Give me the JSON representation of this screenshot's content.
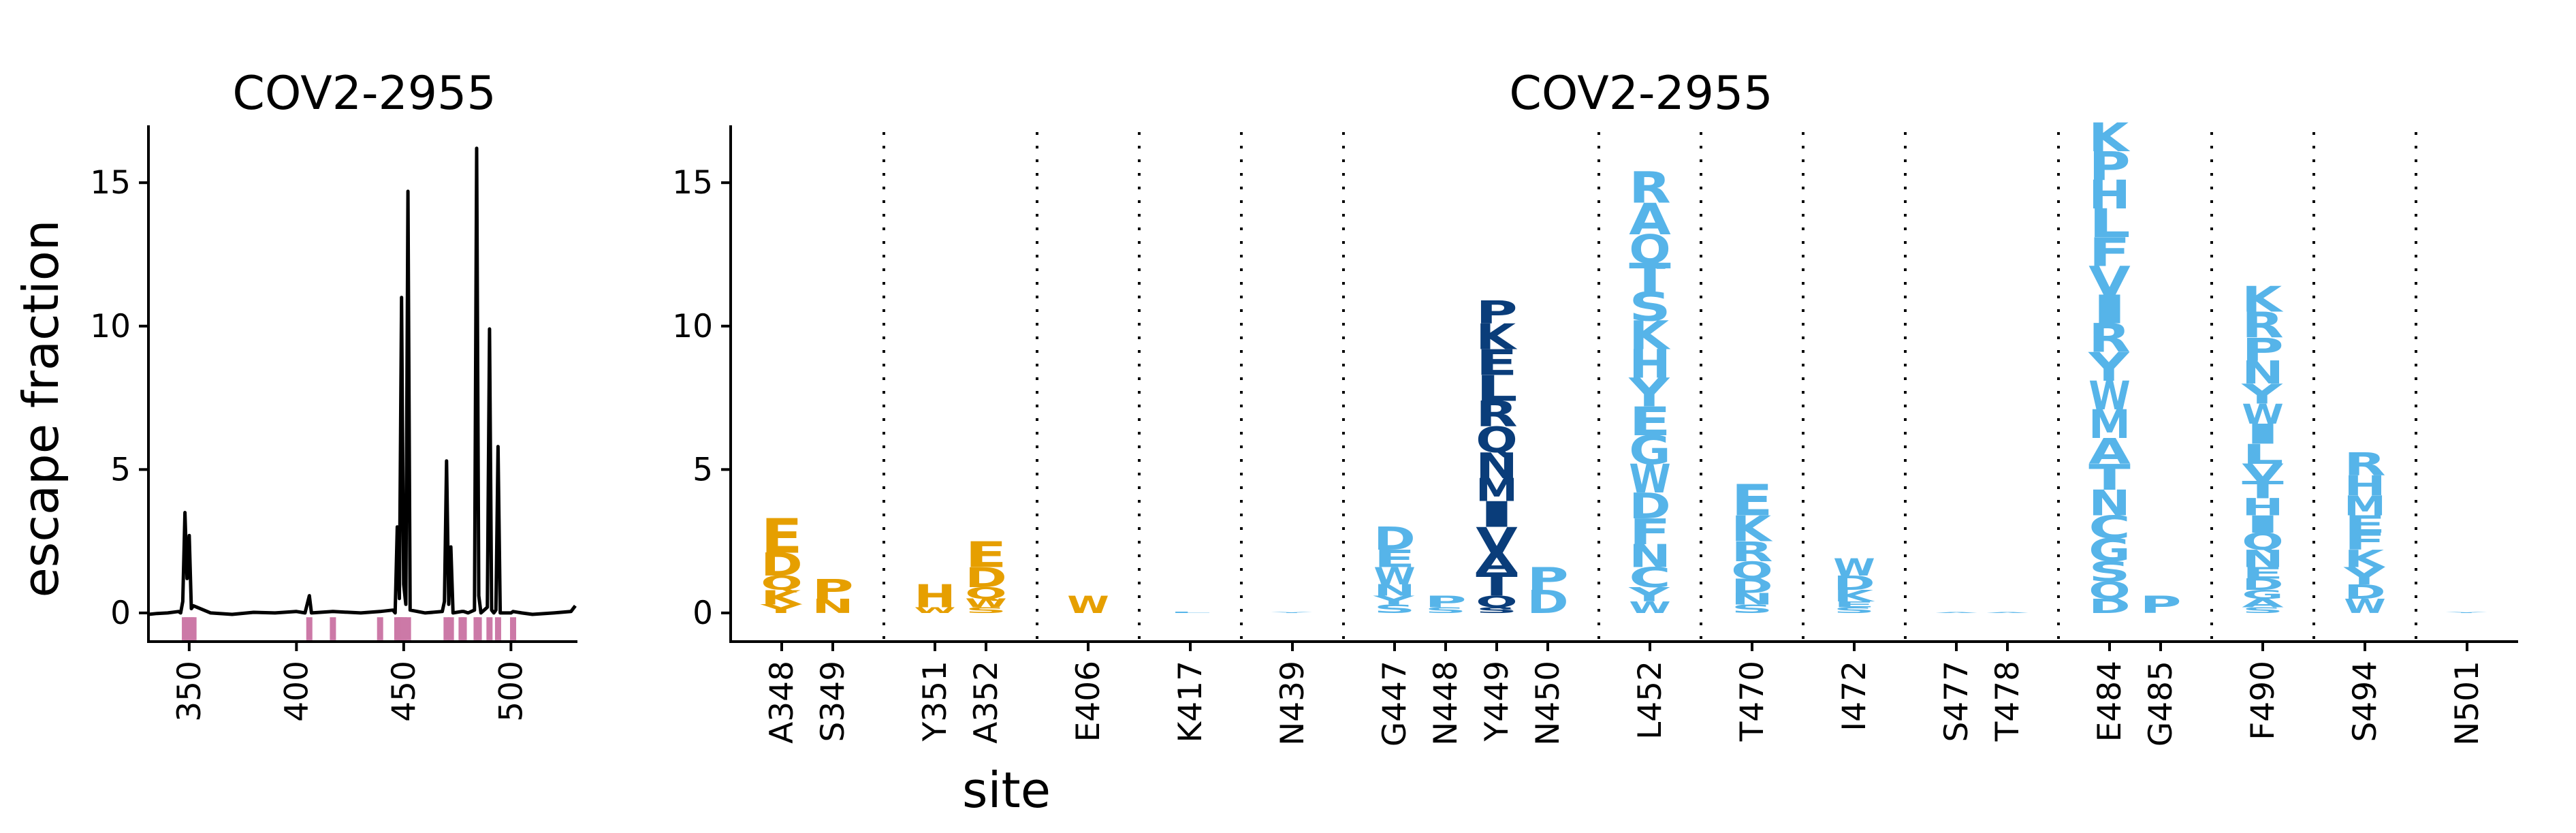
{
  "colors": {
    "orange": "#e69f00",
    "light_blue": "#56b4e9",
    "dark_blue": "#0a3d7a",
    "pink": "#cc79a7",
    "line": "#000000"
  },
  "chart_data": [
    {
      "type": "line",
      "title": "COV2-2955",
      "ylabel": "escape fraction",
      "xlabel": "",
      "xlim": [
        331,
        531
      ],
      "ylim": [
        -1,
        17
      ],
      "xticks": [
        350,
        400,
        450,
        500
      ],
      "yticks": [
        0,
        5,
        10,
        15
      ],
      "grid": false,
      "series": [
        {
          "type": "line",
          "points": [
            [
              331,
              -0.05
            ],
            [
              335,
              -0.02
            ],
            [
              340,
              0.0
            ],
            [
              345,
              0.05
            ],
            [
              346,
              0.0
            ],
            [
              347,
              0.4
            ],
            [
              348,
              3.5
            ],
            [
              349,
              1.2
            ],
            [
              350,
              2.7
            ],
            [
              351,
              0.15
            ],
            [
              352,
              0.25
            ],
            [
              360,
              0.0
            ],
            [
              370,
              -0.05
            ],
            [
              380,
              0.02
            ],
            [
              390,
              0.0
            ],
            [
              400,
              0.05
            ],
            [
              404,
              0.0
            ],
            [
              406,
              0.6
            ],
            [
              407,
              0.0
            ],
            [
              417,
              0.05
            ],
            [
              430,
              0.0
            ],
            [
              439,
              0.05
            ],
            [
              445,
              0.1
            ],
            [
              446,
              0.0
            ],
            [
              447,
              3.0
            ],
            [
              448,
              0.5
            ],
            [
              449,
              11.0
            ],
            [
              450,
              1.0
            ],
            [
              451,
              0.3
            ],
            [
              452,
              14.7
            ],
            [
              453,
              0.1
            ],
            [
              460,
              0.0
            ],
            [
              468,
              0.05
            ],
            [
              469,
              0.4
            ],
            [
              470,
              5.3
            ],
            [
              471,
              0.3
            ],
            [
              472,
              2.3
            ],
            [
              473,
              0.0
            ],
            [
              477,
              0.05
            ],
            [
              478,
              0.05
            ],
            [
              480,
              0.0
            ],
            [
              483,
              0.1
            ],
            [
              484,
              16.2
            ],
            [
              485,
              0.6
            ],
            [
              486,
              0.0
            ],
            [
              489,
              0.2
            ],
            [
              490,
              9.9
            ],
            [
              491,
              0.1
            ],
            [
              492,
              0.0
            ],
            [
              493,
              0.1
            ],
            [
              494,
              5.8
            ],
            [
              495,
              0.0
            ],
            [
              500,
              0.0
            ],
            [
              501,
              0.05
            ],
            [
              505,
              0.0
            ],
            [
              510,
              -0.05
            ],
            [
              520,
              0.0
            ],
            [
              528,
              0.05
            ],
            [
              530,
              0.25
            ]
          ]
        }
      ],
      "highlighted_sites": [
        348,
        349,
        351,
        352,
        406,
        417,
        439,
        447,
        448,
        449,
        450,
        452,
        470,
        472,
        477,
        478,
        484,
        485,
        490,
        494,
        501
      ]
    },
    {
      "type": "logo",
      "title": "COV2-2955",
      "xlabel": "site",
      "ylabel": "",
      "ylim": [
        -1,
        17
      ],
      "yticks": [
        0,
        5,
        10,
        15
      ],
      "grid": false,
      "groups": [
        {
          "sites": [
            {
              "label": "A348",
              "color_key": "orange",
              "letters": [
                [
                  "Y",
                  0.3
                ],
                [
                  "K",
                  0.5
                ],
                [
                  "Q",
                  0.5
                ],
                [
                  "D",
                  0.8
                ],
                [
                  "E",
                  1.2
                ]
              ]
            },
            {
              "label": "S349",
              "color_key": "orange",
              "letters": [
                [
                  "N",
                  0.5
                ],
                [
                  "P",
                  0.7
                ]
              ]
            }
          ]
        },
        {
          "sites": [
            {
              "label": "Y351",
              "color_key": "orange",
              "letters": [
                [
                  "W",
                  0.2
                ],
                [
                  "H",
                  0.8
                ]
              ]
            },
            {
              "label": "A352",
              "color_key": "orange",
              "letters": [
                [
                  "S",
                  0.2
                ],
                [
                  "W",
                  0.3
                ],
                [
                  "Q",
                  0.4
                ],
                [
                  "D",
                  0.7
                ],
                [
                  "E",
                  0.9
                ]
              ]
            }
          ]
        },
        {
          "sites": [
            {
              "label": "E406",
              "color_key": "orange",
              "letters": [
                [
                  "W",
                  0.6
                ]
              ]
            }
          ]
        },
        {
          "sites": [
            {
              "label": "K417",
              "color_key": "light_blue",
              "letters": [
                [
                  "L",
                  0.05
                ]
              ]
            }
          ]
        },
        {
          "sites": [
            {
              "label": "N439",
              "color_key": "light_blue",
              "letters": [
                [
                  "Y",
                  0.03
                ]
              ]
            }
          ]
        },
        {
          "sites": [
            {
              "label": "G447",
              "color_key": "light_blue",
              "letters": [
                [
                  "S",
                  0.3
                ],
                [
                  "Y",
                  0.3
                ],
                [
                  "N",
                  0.4
                ],
                [
                  "W",
                  0.6
                ],
                [
                  "E",
                  0.6
                ],
                [
                  "D",
                  0.8
                ]
              ]
            },
            {
              "label": "N448",
              "color_key": "light_blue",
              "letters": [
                [
                  "S",
                  0.2
                ],
                [
                  "P",
                  0.4
                ]
              ]
            },
            {
              "label": "Y449",
              "color_key": "dark_blue",
              "letters": [
                [
                  "S",
                  0.2
                ],
                [
                  "Q",
                  0.4
                ],
                [
                  "T",
                  0.8
                ],
                [
                  "A",
                  0.7
                ],
                [
                  "V",
                  0.9
                ],
                [
                  "I",
                  0.9
                ],
                [
                  "M",
                  0.8
                ],
                [
                  "N",
                  0.9
                ],
                [
                  "Q",
                  0.9
                ],
                [
                  "R",
                  0.9
                ],
                [
                  "L",
                  0.9
                ],
                [
                  "E",
                  0.9
                ],
                [
                  "K",
                  0.9
                ],
                [
                  "P",
                  0.8
                ]
              ]
            },
            {
              "label": "N450",
              "color_key": "light_blue",
              "letters": [
                [
                  "D",
                  0.8
                ],
                [
                  "P",
                  0.8
                ]
              ]
            }
          ]
        },
        {
          "sites": [
            {
              "label": "L452",
              "color_key": "light_blue",
              "letters": [
                [
                  "W",
                  0.4
                ],
                [
                  "Y",
                  0.5
                ],
                [
                  "C",
                  0.7
                ],
                [
                  "N",
                  0.8
                ],
                [
                  "F",
                  0.9
                ],
                [
                  "D",
                  0.9
                ],
                [
                  "W",
                  1.0
                ],
                [
                  "G",
                  1.0
                ],
                [
                  "E",
                  1.0
                ],
                [
                  "Y",
                  1.0
                ],
                [
                  "H",
                  1.0
                ],
                [
                  "K",
                  1.0
                ],
                [
                  "S",
                  1.0
                ],
                [
                  "T",
                  1.0
                ],
                [
                  "Q",
                  1.0
                ],
                [
                  "A",
                  1.1
                ],
                [
                  "R",
                  1.1
                ]
              ]
            }
          ]
        },
        {
          "sites": [
            {
              "label": "T470",
              "color_key": "light_blue",
              "letters": [
                [
                  "S",
                  0.3
                ],
                [
                  "N",
                  0.4
                ],
                [
                  "D",
                  0.5
                ],
                [
                  "Q",
                  0.6
                ],
                [
                  "R",
                  0.7
                ],
                [
                  "K",
                  0.9
                ],
                [
                  "E",
                  1.1
                ]
              ]
            }
          ]
        },
        {
          "sites": [
            {
              "label": "I472",
              "color_key": "light_blue",
              "letters": [
                [
                  "S",
                  0.2
                ],
                [
                  "E",
                  0.2
                ],
                [
                  "K",
                  0.4
                ],
                [
                  "D",
                  0.5
                ],
                [
                  "W",
                  0.6
                ]
              ]
            }
          ]
        },
        {
          "sites": [
            {
              "label": "S477",
              "color_key": "light_blue",
              "letters": [
                [
                  "A",
                  0.03
                ]
              ]
            },
            {
              "label": "T478",
              "color_key": "light_blue",
              "letters": [
                [
                  "A",
                  0.03
                ]
              ]
            }
          ]
        },
        {
          "sites": [
            {
              "label": "E484",
              "color_key": "light_blue",
              "letters": [
                [
                  "D",
                  0.5
                ],
                [
                  "Q",
                  0.6
                ],
                [
                  "S",
                  0.7
                ],
                [
                  "G",
                  0.8
                ],
                [
                  "C",
                  0.8
                ],
                [
                  "N",
                  0.9
                ],
                [
                  "T",
                  0.9
                ],
                [
                  "A",
                  0.9
                ],
                [
                  "M",
                  1.0
                ],
                [
                  "W",
                  1.0
                ],
                [
                  "Y",
                  1.0
                ],
                [
                  "R",
                  1.0
                ],
                [
                  "I",
                  1.0
                ],
                [
                  "V",
                  1.0
                ],
                [
                  "F",
                  1.0
                ],
                [
                  "L",
                  1.0
                ],
                [
                  "H",
                  1.0
                ],
                [
                  "P",
                  1.0
                ],
                [
                  "K",
                  1.0
                ]
              ]
            },
            {
              "label": "G485",
              "color_key": "light_blue",
              "letters": [
                [
                  "P",
                  0.6
                ]
              ]
            }
          ]
        },
        {
          "sites": [
            {
              "label": "F490",
              "color_key": "light_blue",
              "letters": [
                [
                  "S",
                  0.2
                ],
                [
                  "A",
                  0.3
                ],
                [
                  "G",
                  0.3
                ],
                [
                  "D",
                  0.4
                ],
                [
                  "E",
                  0.4
                ],
                [
                  "N",
                  0.6
                ],
                [
                  "Q",
                  0.6
                ],
                [
                  "I",
                  0.6
                ],
                [
                  "H",
                  0.6
                ],
                [
                  "T",
                  0.6
                ],
                [
                  "V",
                  0.6
                ],
                [
                  "L",
                  0.7
                ],
                [
                  "I",
                  0.7
                ],
                [
                  "W",
                  0.7
                ],
                [
                  "Y",
                  0.7
                ],
                [
                  "N",
                  0.8
                ],
                [
                  "P",
                  0.8
                ],
                [
                  "R",
                  0.9
                ],
                [
                  "K",
                  0.9
                ]
              ]
            }
          ]
        },
        {
          "sites": [
            {
              "label": "S494",
              "color_key": "light_blue",
              "letters": [
                [
                  "W",
                  0.5
                ],
                [
                  "D",
                  0.5
                ],
                [
                  "Y",
                  0.6
                ],
                [
                  "K",
                  0.6
                ],
                [
                  "F",
                  0.6
                ],
                [
                  "E",
                  0.6
                ],
                [
                  "M",
                  0.7
                ],
                [
                  "H",
                  0.7
                ],
                [
                  "R",
                  0.8
                ]
              ]
            }
          ]
        },
        {
          "sites": [
            {
              "label": "N501",
              "color_key": "light_blue",
              "letters": [
                [
                  "Y",
                  0.03
                ]
              ]
            }
          ]
        }
      ]
    }
  ]
}
